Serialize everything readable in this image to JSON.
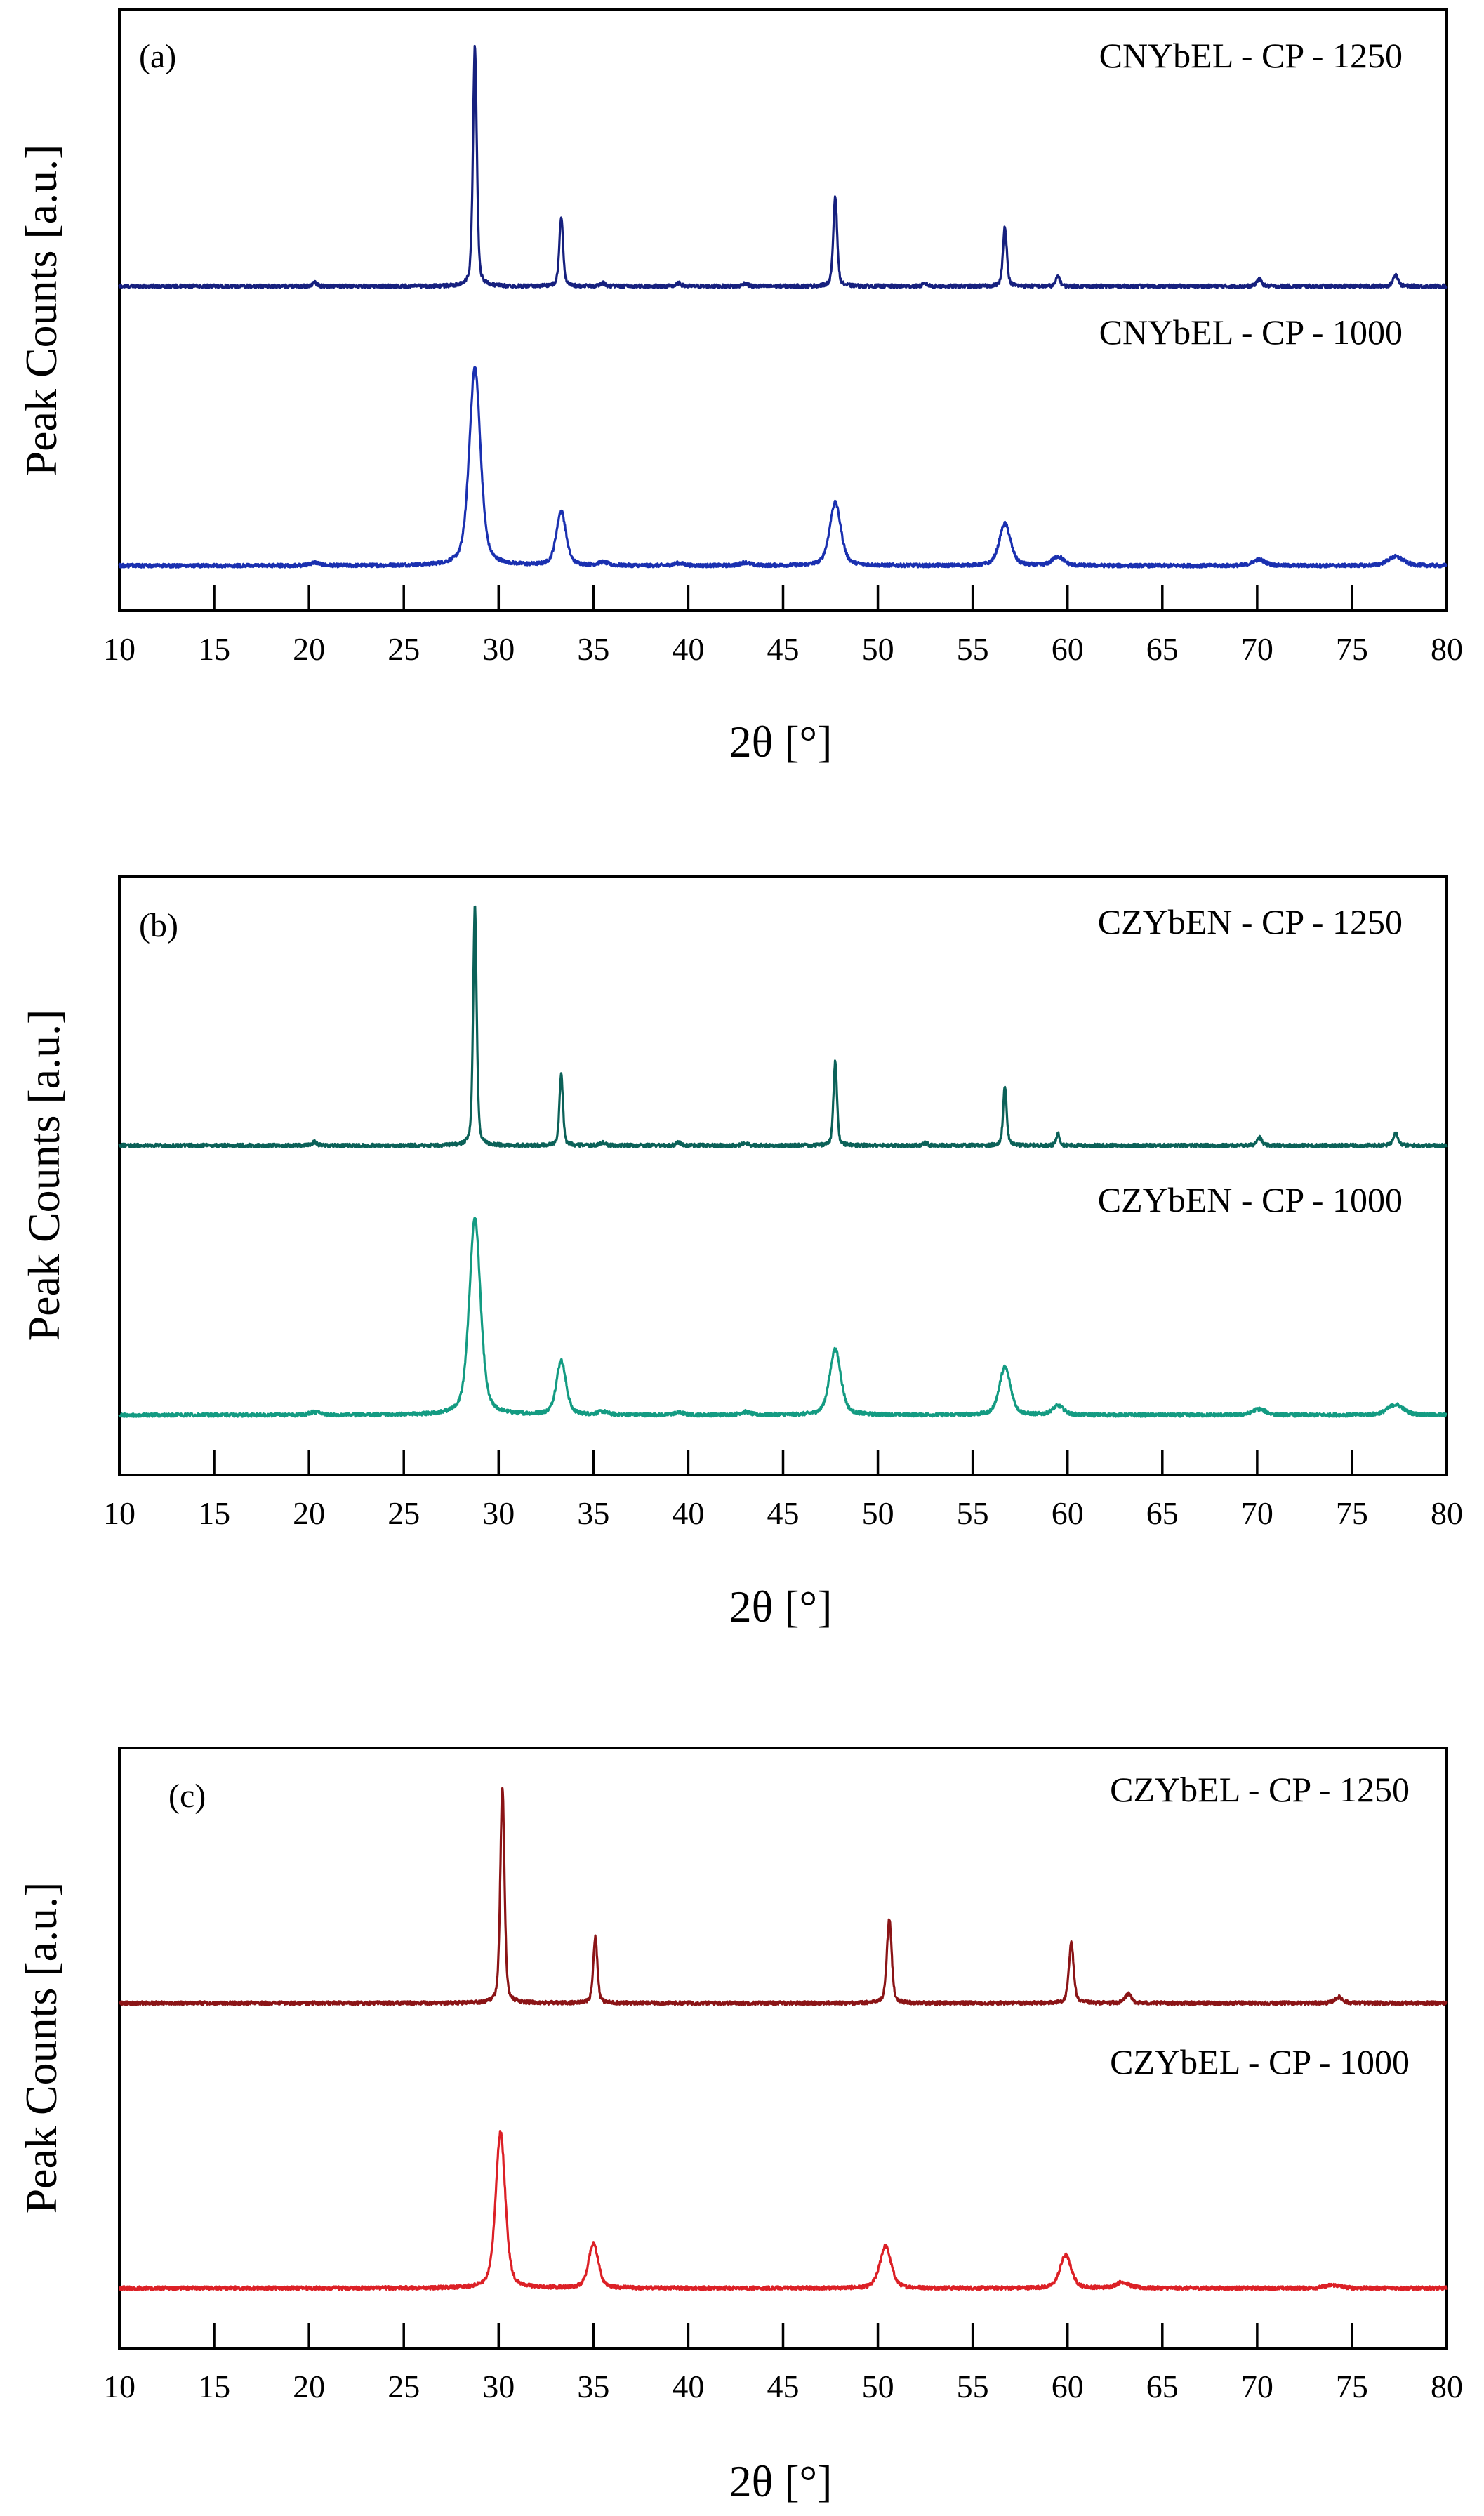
{
  "figure": {
    "description_labels": [
      "(a)",
      "(b)",
      "(c)"
    ]
  },
  "chart_data": [
    {
      "type": "line",
      "panel_label": "(a)",
      "xlabel": "2θ [°]",
      "ylabel": "Peak Counts [a.u.]",
      "xlim": [
        10,
        80
      ],
      "ylim": [
        0,
        2.0
      ],
      "xticks": [
        "10",
        "15",
        "20",
        "25",
        "30",
        "35",
        "40",
        "45",
        "50",
        "55",
        "60",
        "65",
        "70",
        "75",
        "80"
      ],
      "yticks_shown": false,
      "series": [
        {
          "name": "CNYbEL - CP - 1250",
          "color": "#16207e",
          "baseline": 1.08,
          "peaks": [
            [
              20.3,
              0.012,
              0.15
            ],
            [
              28.75,
              0.8,
              0.12
            ],
            [
              33.3,
              0.23,
              0.12
            ],
            [
              35.5,
              0.01,
              0.15
            ],
            [
              39.5,
              0.01,
              0.15
            ],
            [
              43.0,
              0.01,
              0.15
            ],
            [
              47.75,
              0.3,
              0.12
            ],
            [
              52.5,
              0.008,
              0.15
            ],
            [
              56.7,
              0.2,
              0.12
            ],
            [
              59.5,
              0.035,
              0.12
            ],
            [
              70.1,
              0.025,
              0.15
            ],
            [
              77.3,
              0.04,
              0.15
            ]
          ]
        },
        {
          "name": "CNYbEL - CP - 1000",
          "color": "#1a30b0",
          "baseline": 0.15,
          "peaks": [
            [
              20.3,
              0.01,
              0.3
            ],
            [
              28.75,
              0.66,
              0.35
            ],
            [
              33.3,
              0.18,
              0.3
            ],
            [
              35.5,
              0.01,
              0.3
            ],
            [
              39.5,
              0.008,
              0.3
            ],
            [
              43.0,
              0.01,
              0.3
            ],
            [
              47.75,
              0.21,
              0.35
            ],
            [
              56.7,
              0.14,
              0.35
            ],
            [
              59.5,
              0.03,
              0.35
            ],
            [
              70.1,
              0.02,
              0.4
            ],
            [
              77.3,
              0.03,
              0.5
            ]
          ]
        }
      ]
    },
    {
      "type": "line",
      "panel_label": "(b)",
      "xlabel": "2θ [°]",
      "ylabel": "Peak Counts [a.u.]",
      "xlim": [
        10,
        80
      ],
      "ylim": [
        0,
        2.0
      ],
      "xticks": [
        "10",
        "15",
        "20",
        "25",
        "30",
        "35",
        "40",
        "45",
        "50",
        "55",
        "60",
        "65",
        "70",
        "75",
        "80"
      ],
      "yticks_shown": false,
      "series": [
        {
          "name": "CZYbEN - CP - 1250",
          "color": "#0b6158",
          "baseline": 1.1,
          "peaks": [
            [
              20.3,
              0.012,
              0.15
            ],
            [
              28.75,
              0.8,
              0.11
            ],
            [
              33.3,
              0.24,
              0.11
            ],
            [
              35.5,
              0.01,
              0.15
            ],
            [
              39.5,
              0.01,
              0.15
            ],
            [
              43.0,
              0.01,
              0.15
            ],
            [
              47.75,
              0.28,
              0.11
            ],
            [
              52.5,
              0.008,
              0.15
            ],
            [
              56.7,
              0.2,
              0.11
            ],
            [
              59.5,
              0.04,
              0.11
            ],
            [
              70.1,
              0.03,
              0.15
            ],
            [
              77.3,
              0.045,
              0.15
            ]
          ]
        },
        {
          "name": "CZYbEN - CP - 1000",
          "color": "#139b82",
          "baseline": 0.2,
          "peaks": [
            [
              20.3,
              0.01,
              0.3
            ],
            [
              28.75,
              0.66,
              0.35
            ],
            [
              33.3,
              0.18,
              0.3
            ],
            [
              35.5,
              0.01,
              0.3
            ],
            [
              39.5,
              0.008,
              0.3
            ],
            [
              43.0,
              0.01,
              0.3
            ],
            [
              47.75,
              0.22,
              0.35
            ],
            [
              56.7,
              0.16,
              0.35
            ],
            [
              59.5,
              0.03,
              0.35
            ],
            [
              70.1,
              0.02,
              0.4
            ],
            [
              77.3,
              0.035,
              0.5
            ]
          ]
        }
      ]
    },
    {
      "type": "line",
      "panel_label": "(c)",
      "xlabel": "2θ [°]",
      "ylabel": "Peak Counts [a.u.]",
      "xlim": [
        10,
        80
      ],
      "ylim": [
        0,
        2.0
      ],
      "xticks": [
        "10",
        "15",
        "20",
        "25",
        "30",
        "35",
        "40",
        "45",
        "50",
        "55",
        "60",
        "65",
        "70",
        "75",
        "80"
      ],
      "yticks_shown": false,
      "series": [
        {
          "name": "CZYbEL - CP - 1250",
          "color": "#8b1416",
          "baseline": 1.15,
          "peaks": [
            [
              30.2,
              0.72,
              0.13
            ],
            [
              35.1,
              0.22,
              0.13
            ],
            [
              50.6,
              0.28,
              0.15
            ],
            [
              60.2,
              0.2,
              0.15
            ],
            [
              63.2,
              0.03,
              0.2
            ],
            [
              74.3,
              0.02,
              0.25
            ]
          ]
        },
        {
          "name": "CZYbEL - CP - 1000",
          "color": "#dc2026",
          "baseline": 0.2,
          "peaks": [
            [
              30.1,
              0.52,
              0.3
            ],
            [
              35.0,
              0.15,
              0.3
            ],
            [
              50.4,
              0.14,
              0.35
            ],
            [
              59.9,
              0.11,
              0.35
            ],
            [
              62.9,
              0.02,
              0.4
            ],
            [
              74.0,
              0.01,
              0.5
            ]
          ]
        }
      ]
    }
  ]
}
